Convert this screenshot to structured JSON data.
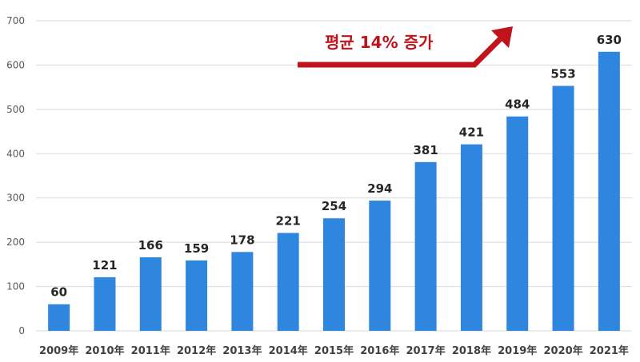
{
  "chart_data": {
    "type": "bar",
    "categories": [
      "2009年",
      "2010年",
      "2011年",
      "2012年",
      "2013年",
      "2014年",
      "2015年",
      "2016年",
      "2017年",
      "2018年",
      "2019年",
      "2020年",
      "2021年"
    ],
    "values": [
      60,
      121,
      166,
      159,
      178,
      221,
      254,
      294,
      381,
      421,
      484,
      553,
      630
    ],
    "yticks": [
      0,
      100,
      200,
      300,
      400,
      500,
      600,
      700
    ],
    "ylim": [
      0,
      700
    ],
    "grid": true,
    "bar_color": "#2e86de",
    "annotation": {
      "text": "평균 14% 증가",
      "color": "#c0141c"
    }
  }
}
